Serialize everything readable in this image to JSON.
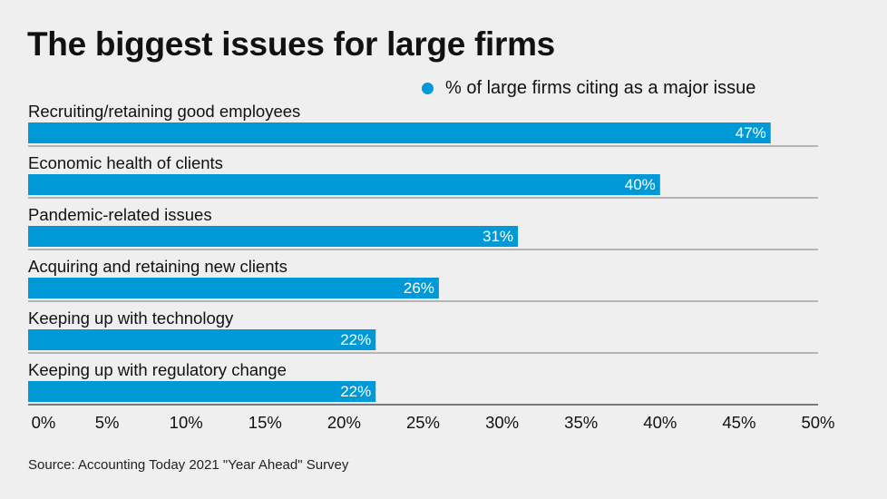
{
  "header": {
    "title": "The biggest issues for large firms"
  },
  "legend": {
    "label": "% of large firms citing as a major issue",
    "color": "#0099d8"
  },
  "chart_data": {
    "type": "bar",
    "orientation": "horizontal",
    "title": "The biggest issues for large firms",
    "categories": [
      "Recruiting/retaining good employees",
      "Economic health of clients",
      "Pandemic-related issues",
      "Acquiring and retaining new clients",
      "Keeping up with technology",
      "Keeping up with regulatory change"
    ],
    "series": [
      {
        "name": "% of large firms citing as a major issue",
        "values": [
          47,
          40,
          31,
          26,
          22,
          22
        ],
        "value_labels": [
          "47%",
          "40%",
          "31%",
          "26%",
          "22%",
          "22%"
        ]
      }
    ],
    "xlim": [
      0,
      50
    ],
    "x_ticks": [
      0,
      5,
      10,
      15,
      20,
      25,
      30,
      35,
      40,
      45,
      50
    ],
    "x_tick_labels": [
      "0%",
      "5%",
      "10%",
      "15%",
      "20%",
      "25%",
      "30%",
      "35%",
      "40%",
      "45%",
      "50%"
    ],
    "xlabel": "",
    "ylabel": "",
    "grid": false,
    "legend_position": "top-right"
  },
  "footer": {
    "source": "Source: Accounting Today 2021 \"Year Ahead\" Survey"
  }
}
